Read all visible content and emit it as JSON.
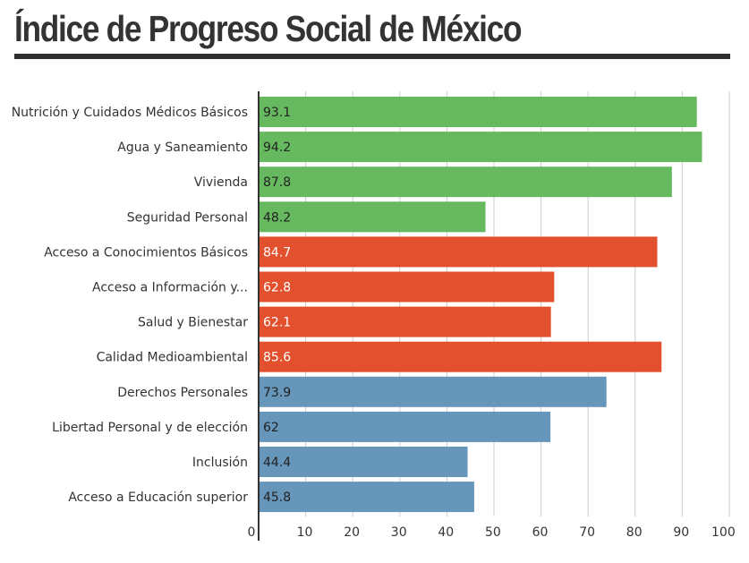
{
  "title": "Índice de Progreso Social de México",
  "colors": {
    "green": "#66b95e",
    "red": "#e3502e",
    "blue": "#6696b9",
    "grid": "#cccccc",
    "axis": "#333333",
    "title_rule": "#2f2f2f"
  },
  "chart_data": {
    "type": "bar",
    "orientation": "horizontal",
    "categories": [
      "Nutrición y Cuidados Médicos Básicos",
      "Agua y Saneamiento",
      "Vivienda",
      "Seguridad Personal",
      "Acceso a Conocimientos Básicos",
      "Acceso a Información y...",
      "Salud y Bienestar",
      "Calidad Medioambiental",
      "Derechos Personales",
      "Libertad Personal y de elección",
      "Inclusión",
      "Acceso a Educación superior"
    ],
    "values": [
      93.1,
      94.2,
      87.8,
      48.2,
      84.7,
      62.8,
      62.1,
      85.6,
      73.9,
      62,
      44.4,
      45.8
    ],
    "data_labels": [
      "93.1",
      "94.2",
      "87.8",
      "48.2",
      "84.7",
      "62.8",
      "62.1",
      "85.6",
      "73.9",
      "62",
      "44.4",
      "45.8"
    ],
    "bar_colors": [
      "green",
      "green",
      "green",
      "green",
      "red",
      "red",
      "red",
      "red",
      "blue",
      "blue",
      "blue",
      "blue"
    ],
    "xlim": [
      0,
      100
    ],
    "xticks": [
      "0",
      "10",
      "20",
      "30",
      "40",
      "50",
      "60",
      "70",
      "80",
      "90",
      "100"
    ],
    "grid": true,
    "legend": "none"
  }
}
